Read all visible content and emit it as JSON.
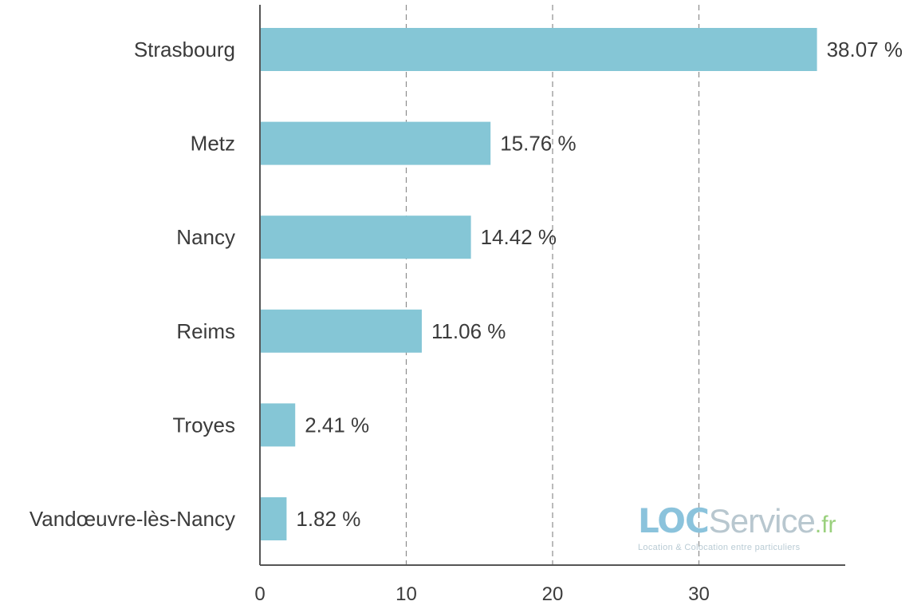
{
  "chart_data": {
    "type": "bar",
    "orientation": "horizontal",
    "categories": [
      "Strasbourg",
      "Metz",
      "Nancy",
      "Reims",
      "Troyes",
      "Vandœuvre-lès-Nancy"
    ],
    "values": [
      38.07,
      15.76,
      14.42,
      11.06,
      2.41,
      1.82
    ],
    "value_labels": [
      "38.07 %",
      "15.76 %",
      "14.42 %",
      "11.06 %",
      "2.41 %",
      "1.82 %"
    ],
    "x_ticks": [
      0,
      10,
      20,
      30
    ],
    "xlim": [
      0,
      40
    ],
    "grid": true,
    "title": "",
    "xlabel": "",
    "ylabel": "",
    "bar_color": "#85c6d6"
  },
  "watermark": {
    "brand_loc": "LOC",
    "brand_service": "Service",
    "brand_tld": ".fr",
    "tagline": "Location & Colocation entre particuliers",
    "loc_color": "#8bc3dc",
    "service_color": "#b8c7cf",
    "tld_color": "#9ad07d"
  }
}
